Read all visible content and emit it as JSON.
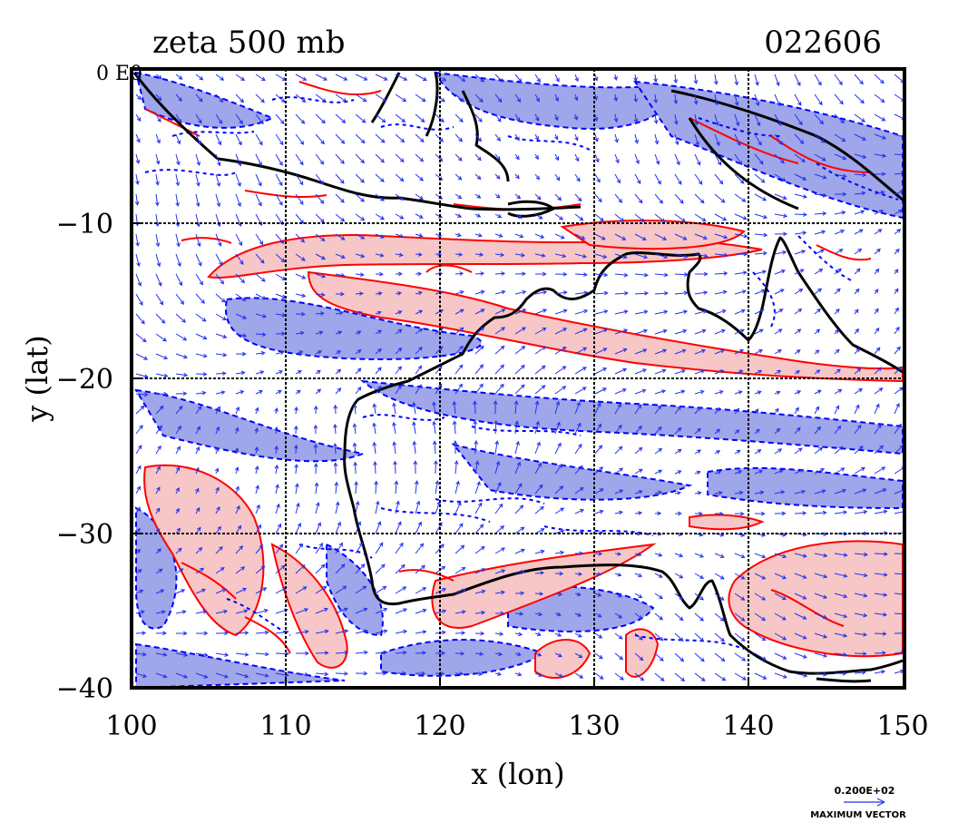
{
  "title": "zeta 500 mb",
  "date_code": "022606",
  "corner_label": "0 E0",
  "xlabel": "x (lon)",
  "ylabel": "y (lat)",
  "x_ticks": [
    "100",
    "110",
    "120",
    "130",
    "140",
    "150"
  ],
  "y_ticks": [
    "0",
    "−10",
    "−20",
    "−30",
    "−40"
  ],
  "vector_scale_value": "0.200E+02",
  "vector_scale_caption": "MAXIMUM VECTOR",
  "colors": {
    "positive_line": "#ff0000",
    "positive_fill": "#f7c6c6",
    "negative_line": "#0000ff",
    "negative_fill": "#9fa6ea",
    "coast": "#000000",
    "grid": "#000000",
    "arrow": "#2233ee"
  },
  "map": {
    "lon_range": [
      100,
      150
    ],
    "lat_range": [
      -40,
      0
    ],
    "gridlines_lon": [
      110,
      120,
      130,
      140
    ],
    "gridlines_lat": [
      -10,
      -20,
      -30
    ]
  }
}
